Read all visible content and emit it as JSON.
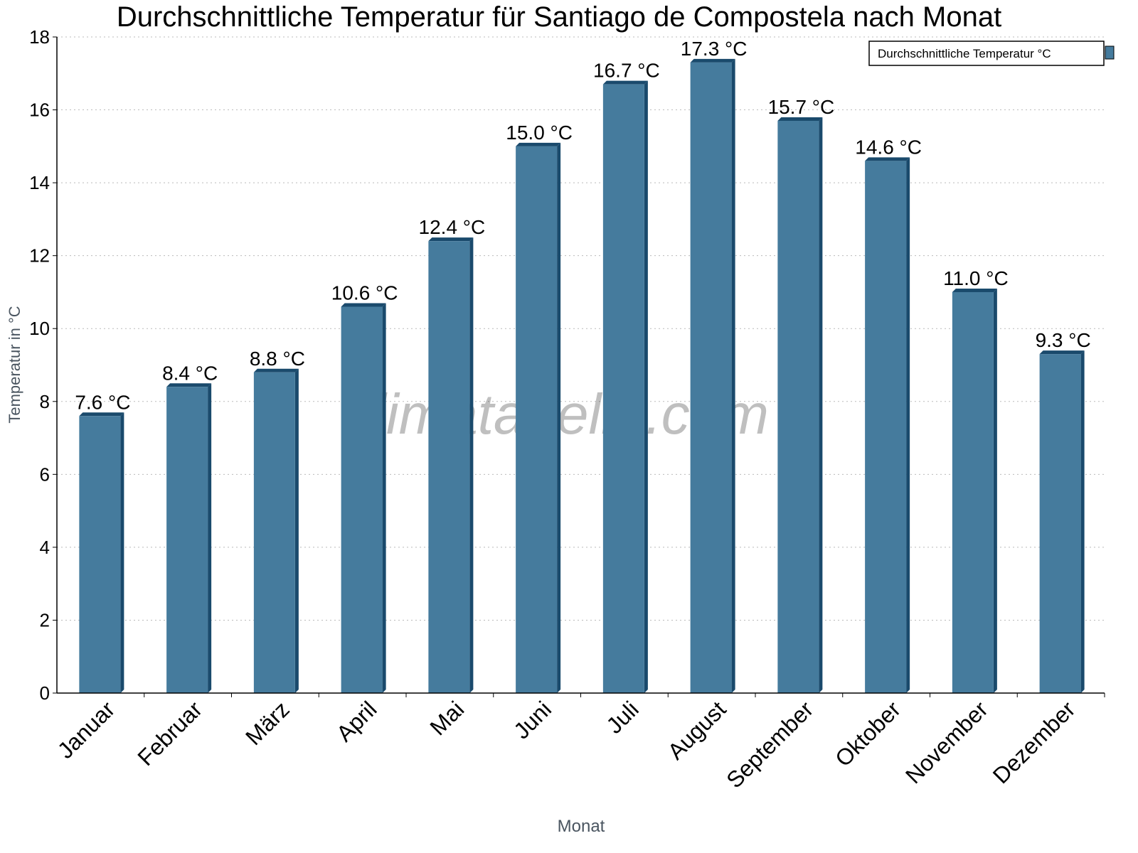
{
  "chart_data": {
    "type": "bar",
    "title": "Durchschnittliche Temperatur für Santiago de Compostela nach Monat",
    "xlabel": "Monat",
    "ylabel": "Temperatur in °C",
    "categories": [
      "Januar",
      "Februar",
      "März",
      "April",
      "Mai",
      "Juni",
      "Juli",
      "August",
      "September",
      "Oktober",
      "November",
      "Dezember"
    ],
    "series": [
      {
        "name": "Durchschnittliche Temperatur °C",
        "values": [
          7.6,
          8.4,
          8.8,
          10.6,
          12.4,
          15.0,
          16.7,
          17.3,
          15.7,
          14.6,
          11.0,
          9.3
        ],
        "color": "#457b9d",
        "side_color": "#1a4a6c"
      }
    ],
    "data_labels": [
      "7.6 °C",
      "8.4 °C",
      "8.8 °C",
      "10.6 °C",
      "12.4 °C",
      "15.0 °C",
      "16.7 °C",
      "17.3 °C",
      "15.7 °C",
      "14.6 °C",
      "11.0 °C",
      "9.3 °C"
    ],
    "ylim": [
      0,
      18
    ],
    "yticks": [
      0,
      2,
      4,
      6,
      8,
      10,
      12,
      14,
      16,
      18
    ],
    "grid": true,
    "legend_position": "top-right",
    "watermark": "klimatabelle.com"
  }
}
